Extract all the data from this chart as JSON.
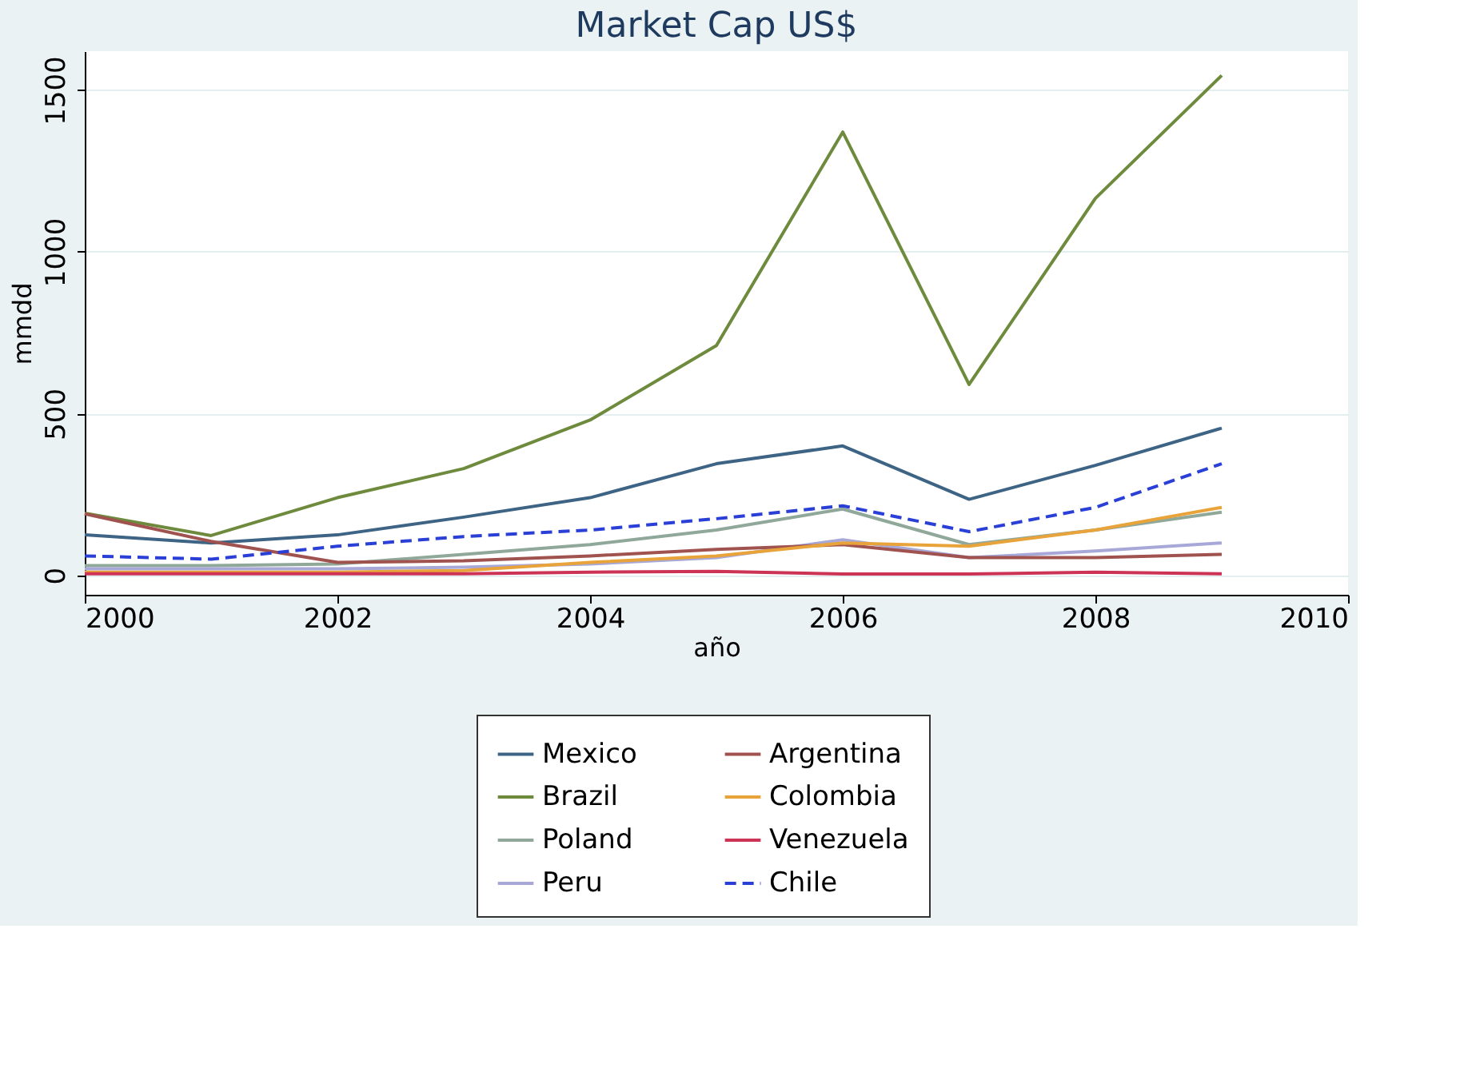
{
  "chart_data": {
    "type": "line",
    "title": "Market Cap US$",
    "xlabel": "año",
    "ylabel": "mmdd",
    "x": [
      2000,
      2001,
      2002,
      2003,
      2004,
      2005,
      2006,
      2007,
      2008,
      2009
    ],
    "xlim": [
      2000,
      2010
    ],
    "xticks": [
      2000,
      2002,
      2004,
      2006,
      2008,
      2010
    ],
    "ylim": [
      -60,
      1620
    ],
    "yticks": [
      0,
      500,
      1000,
      1500
    ],
    "grid": "y",
    "legend": "bottom",
    "marker": "none",
    "series": [
      {
        "name": "Mexico",
        "color": "#3e6485",
        "line_style": "solid",
        "values": [
          125,
          100,
          125,
          180,
          240,
          345,
          400,
          235,
          340,
          455
        ]
      },
      {
        "name": "Brazil",
        "color": "#6e8b3d",
        "line_style": "solid",
        "values": [
          192,
          123,
          240,
          330,
          480,
          710,
          1370,
          590,
          1165,
          1545
        ]
      },
      {
        "name": "Poland",
        "color": "#8fa89a",
        "line_style": "solid",
        "values": [
          30,
          30,
          35,
          65,
          95,
          140,
          205,
          95,
          140,
          195
        ]
      },
      {
        "name": "Peru",
        "color": "#a8a8d8",
        "line_style": "solid",
        "values": [
          20,
          20,
          20,
          25,
          35,
          55,
          110,
          55,
          75,
          100
        ]
      },
      {
        "name": "Argentina",
        "color": "#a0524e",
        "line_style": "solid",
        "values": [
          190,
          105,
          40,
          45,
          60,
          80,
          95,
          55,
          55,
          65
        ]
      },
      {
        "name": "Colombia",
        "color": "#e8a33a",
        "line_style": "solid",
        "values": [
          10,
          10,
          10,
          15,
          40,
          60,
          100,
          90,
          140,
          210
        ]
      },
      {
        "name": "Venezuela",
        "color": "#cc3355",
        "line_style": "solid",
        "values": [
          5,
          5,
          5,
          5,
          10,
          12,
          4,
          4,
          10,
          5
        ]
      },
      {
        "name": "Chile",
        "color": "#2a3fd6",
        "line_style": "dashed",
        "values": [
          60,
          50,
          90,
          120,
          140,
          175,
          215,
          135,
          210,
          345
        ]
      }
    ]
  }
}
